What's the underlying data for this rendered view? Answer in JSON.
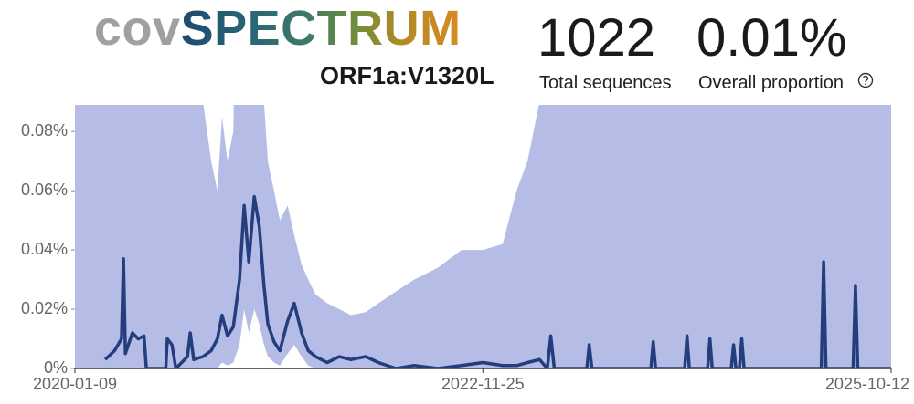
{
  "header": {
    "logo_prefix": "cov",
    "logo_main": "SPECTRUM",
    "mutation": "ORF1a:V1320L",
    "stats": [
      {
        "value": "1022",
        "label": "Total sequences"
      },
      {
        "value": "0.01%",
        "label": "Overall proportion"
      }
    ]
  },
  "chart_data": {
    "type": "line",
    "x": [
      "2020-01-09",
      "2020-03-27",
      "2020-04-20",
      "2020-05-08",
      "2020-05-13",
      "2020-05-18",
      "2020-06-05",
      "2020-06-20",
      "2020-07-05",
      "2020-07-11",
      "2020-08-30",
      "2020-09-03",
      "2020-09-15",
      "2020-09-25",
      "2020-10-25",
      "2020-11-01",
      "2020-11-10",
      "2020-12-04",
      "2020-12-25",
      "2021-01-10",
      "2021-01-22",
      "2021-02-05",
      "2021-02-20",
      "2021-03-08",
      "2021-03-20",
      "2021-04-01",
      "2021-04-15",
      "2021-04-28",
      "2021-05-10",
      "2021-05-20",
      "2021-06-05",
      "2021-06-20",
      "2021-07-10",
      "2021-07-27",
      "2021-08-15",
      "2021-09-01",
      "2021-09-20",
      "2021-10-20",
      "2021-11-20",
      "2021-12-20",
      "2022-01-27",
      "2022-03-01",
      "2022-04-15",
      "2022-06-01",
      "2022-08-01",
      "2022-10-01",
      "2022-11-25",
      "2023-01-15",
      "2023-02-20",
      "2023-03-20",
      "2023-04-20",
      "2023-05-10",
      "2023-05-19",
      "2023-05-28",
      "2023-08-20",
      "2023-08-26",
      "2023-09-02",
      "2024-02-01",
      "2024-02-07",
      "2024-02-13",
      "2024-04-28",
      "2024-05-04",
      "2024-05-10",
      "2024-06-26",
      "2024-07-02",
      "2024-07-08",
      "2024-08-26",
      "2024-09-01",
      "2024-09-07",
      "2024-09-16",
      "2024-09-22",
      "2024-09-28",
      "2025-04-15",
      "2025-04-21",
      "2025-04-27",
      "2025-07-06",
      "2025-07-12",
      "2025-07-18",
      "2025-10-12"
    ],
    "series": [
      {
        "color": "#233d7d",
        "values": [
          null,
          0.003,
          0.006,
          0.01,
          0.037,
          0.005,
          0.012,
          0.01,
          0.011,
          0,
          0,
          0.01,
          0.008,
          0,
          0.004,
          0.012,
          0.003,
          0.004,
          0.006,
          0.01,
          0.018,
          0.011,
          0.014,
          0.03,
          0.055,
          0.036,
          0.058,
          0.048,
          0.028,
          0.015,
          0.009,
          0.006,
          0.016,
          0.022,
          0.012,
          0.006,
          0.004,
          0.002,
          0.004,
          0.003,
          0.004,
          0.002,
          0,
          0.001,
          0,
          0.001,
          0.002,
          0.001,
          0.001,
          0.002,
          0.003,
          0,
          0.011,
          0,
          0,
          0.008,
          0,
          0,
          0.009,
          0,
          0,
          0.011,
          0,
          0,
          0.01,
          0,
          0,
          0.008,
          0,
          0,
          0.01,
          0,
          0,
          0.036,
          0,
          0,
          0.028,
          0,
          0
        ]
      }
    ],
    "band": {
      "color": "#b5bde6",
      "lower": [
        0,
        0,
        0,
        0,
        0,
        0,
        0,
        0,
        0,
        0,
        0,
        0,
        0,
        0,
        0,
        0,
        0,
        0,
        0,
        0,
        0.002,
        0.001,
        0.002,
        0.008,
        0.02,
        0.012,
        0.02,
        0.015,
        0.008,
        0.004,
        0.002,
        0.001,
        0.005,
        0.008,
        0.004,
        0.001,
        0,
        0,
        0,
        0,
        0,
        0,
        0,
        0,
        0,
        0,
        0,
        0,
        0,
        0,
        0,
        0,
        0,
        0,
        0,
        0,
        0,
        0,
        0,
        0,
        0,
        0,
        0,
        0,
        0,
        0,
        0,
        0,
        0,
        0,
        0,
        0,
        0,
        0,
        0,
        0,
        0,
        0,
        0
      ],
      "upper": [
        0.2,
        0.2,
        0.2,
        0.2,
        0.2,
        0.2,
        0.2,
        0.2,
        0.2,
        0.2,
        0.2,
        0.2,
        0.2,
        0.2,
        0.2,
        0.2,
        0.2,
        0.09,
        0.07,
        0.06,
        0.085,
        0.07,
        0.08,
        0.2,
        0.2,
        0.2,
        0.2,
        0.2,
        0.09,
        0.07,
        0.06,
        0.05,
        0.055,
        0.045,
        0.035,
        0.03,
        0.025,
        0.022,
        0.02,
        0.018,
        0.019,
        0.022,
        0.026,
        0.03,
        0.034,
        0.04,
        0.04,
        0.042,
        0.06,
        0.07,
        0.09,
        0.2,
        0.2,
        0.2,
        0.2,
        0.2,
        0.2,
        0.2,
        0.2,
        0.2,
        0.2,
        0.2,
        0.2,
        0.2,
        0.2,
        0.2,
        0.2,
        0.2,
        0.2,
        0.2,
        0.2,
        0.2,
        0.2,
        0.2,
        0.2,
        0.2,
        0.2,
        0.2,
        0.2
      ]
    },
    "xlim": [
      "2020-01-09",
      "2025-10-12"
    ],
    "xticks": [
      "2020-01-09",
      "2022-11-25",
      "2025-10-12"
    ],
    "ylim": [
      0,
      0.089
    ],
    "yticks": [
      {
        "value": 0,
        "label": "0%"
      },
      {
        "value": 0.02,
        "label": "0.02%"
      },
      {
        "value": 0.04,
        "label": "0.04%"
      },
      {
        "value": 0.06,
        "label": "0.06%"
      },
      {
        "value": 0.08,
        "label": "0.08%"
      }
    ]
  }
}
